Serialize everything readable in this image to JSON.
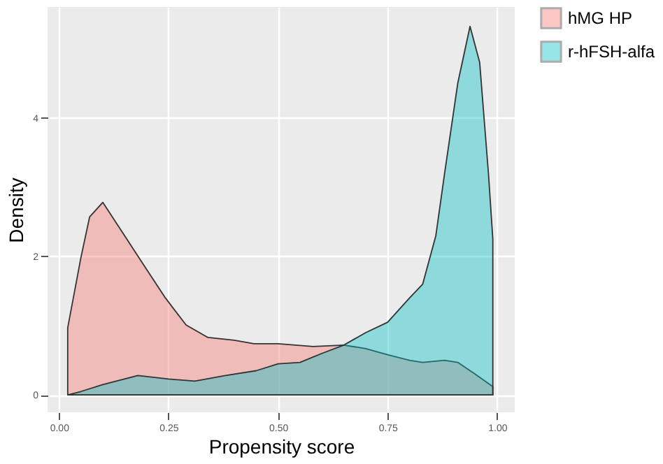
{
  "chart_data": {
    "type": "area",
    "xlabel": "Propensity score",
    "ylabel": "Density",
    "xlim": [
      -0.026,
      1.04
    ],
    "ylim": [
      -0.25,
      5.6
    ],
    "xticks": [
      {
        "value": 0,
        "label": "0.00"
      },
      {
        "value": 0.25,
        "label": "0.25"
      },
      {
        "value": 0.5,
        "label": "0.50"
      },
      {
        "value": 0.75,
        "label": "0.75"
      },
      {
        "value": 1,
        "label": "1.00"
      }
    ],
    "yticks": [
      0,
      2,
      4
    ],
    "grid": true,
    "legend": "right",
    "series": [
      {
        "name": "hMG HP",
        "color": "#f8766d",
        "x": [
          0.02,
          0.05,
          0.07,
          0.1,
          0.155,
          0.195,
          0.243,
          0.29,
          0.34,
          0.4,
          0.445,
          0.5,
          0.58,
          0.65,
          0.7,
          0.75,
          0.8,
          0.83,
          0.88,
          0.91,
          0.95,
          0.99
        ],
        "values": [
          0.97,
          1.98,
          2.57,
          2.78,
          2.25,
          1.86,
          1.4,
          1.01,
          0.83,
          0.79,
          0.74,
          0.74,
          0.7,
          0.72,
          0.67,
          0.58,
          0.5,
          0.47,
          0.5,
          0.47,
          0.3,
          0.12
        ]
      },
      {
        "name": "r-hFSH-alfa",
        "color": "#00bfc4",
        "x": [
          0.02,
          0.05,
          0.1,
          0.18,
          0.25,
          0.31,
          0.38,
          0.45,
          0.5,
          0.55,
          0.6,
          0.65,
          0.7,
          0.75,
          0.8,
          0.83,
          0.86,
          0.88,
          0.91,
          0.938,
          0.96,
          0.98,
          0.99
        ],
        "values": [
          0,
          0.05,
          0.15,
          0.28,
          0.23,
          0.2,
          0.28,
          0.35,
          0.45,
          0.47,
          0.6,
          0.72,
          0.9,
          1.05,
          1.4,
          1.6,
          2.3,
          3.2,
          4.5,
          5.32,
          4.8,
          3.2,
          2.25
        ]
      }
    ]
  }
}
